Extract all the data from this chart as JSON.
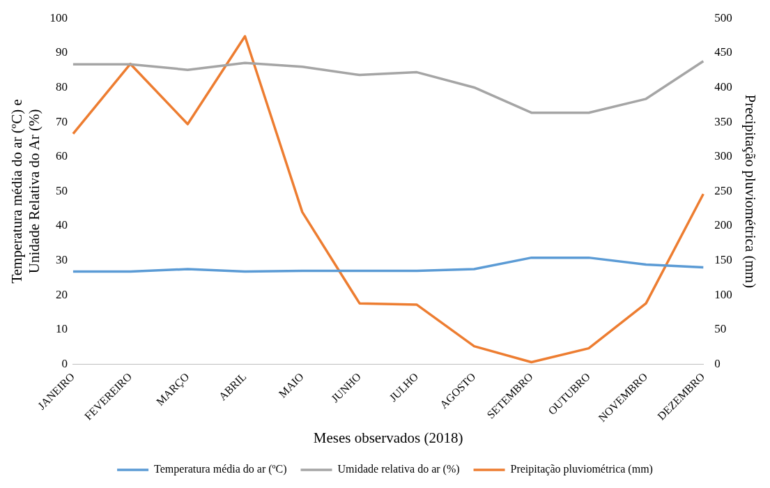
{
  "chart_data": {
    "type": "line",
    "xlabel": "Meses observados (2018)",
    "ylabel": "Temperatura média do ar (ºC) e\nUnidade Relativa do Ar (%)",
    "y2label": "Precipitação pluviométrica (mm)",
    "categories": [
      "JANEIRO",
      "FEVEREIRO",
      "MARÇO",
      "ABRIL",
      "MAIO",
      "JUNHO",
      "JULHO",
      "AGOSTO",
      "SETEMBRO",
      "OUTUBRO",
      "NOVEMBRO",
      "DEZEMBRO"
    ],
    "series": [
      {
        "name": "Temperatura média do ar (ºC)",
        "color": "#5b9bd5",
        "values": [
          26.8,
          26.8,
          27.5,
          26.8,
          27,
          27,
          27,
          27.5,
          30.8,
          30.8,
          28.8,
          28
        ]
      },
      {
        "name": "Umidade relativa do ar (%)",
        "color": "#a5a5a5",
        "values": [
          86.7,
          86.7,
          85.1,
          87.1,
          86,
          83.6,
          84.4,
          80,
          72.7,
          72.7,
          76.7,
          87.6
        ]
      },
      {
        "name": "Preipitação pluviométrica (mm)",
        "color": "#ed7d31",
        "axis": "y2",
        "values": [
          333,
          434,
          347,
          474,
          220,
          88,
          86,
          26,
          3,
          23,
          88,
          246
        ]
      }
    ],
    "ylim": [
      0,
      100
    ],
    "yticks": [
      0,
      10,
      20,
      30,
      40,
      50,
      60,
      70,
      80,
      90,
      100
    ],
    "y2lim": [
      0,
      500
    ],
    "y2ticks": [
      0,
      50,
      100,
      150,
      200,
      250,
      300,
      350,
      400,
      450,
      500
    ],
    "grid": false,
    "legend": "bottom",
    "marker": "none",
    "line_style": "solid"
  }
}
